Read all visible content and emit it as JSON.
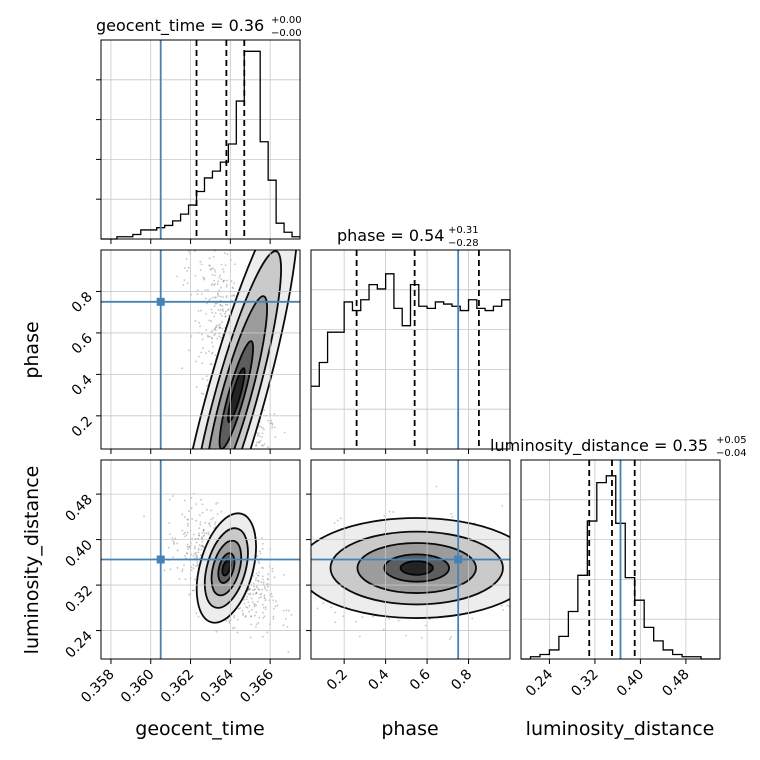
{
  "chart_data": {
    "type": "corner",
    "parameters": [
      {
        "name": "geocent_time",
        "title_base": "geocent_time = 0.36",
        "title_plus": "+0.00",
        "title_minus": "−0.00",
        "range": [
          0.3575,
          0.3675
        ],
        "ticks": [
          0.358,
          0.36,
          0.362,
          0.364,
          0.366
        ],
        "tick_labels": [
          "0.358",
          "0.360",
          "0.362",
          "0.364",
          "0.366"
        ],
        "truth": 0.3605,
        "quantiles": [
          0.3623,
          0.3638,
          0.3647
        ],
        "hist_values": [
          0,
          0,
          1,
          1,
          2,
          4,
          4,
          5,
          6,
          8,
          11,
          15,
          21,
          27,
          30,
          34,
          42,
          61,
          83,
          83,
          43,
          26,
          7,
          3,
          1
        ],
        "hist_ylim": [
          0,
          88
        ]
      },
      {
        "name": "phase",
        "title_base": "phase = 0.54",
        "title_plus": "+0.31",
        "title_minus": "−0.28",
        "range": [
          0.04,
          1.0
        ],
        "ticks": [
          0.2,
          0.4,
          0.6,
          0.8
        ],
        "tick_labels": [
          "0.2",
          "0.4",
          "0.6",
          "0.8"
        ],
        "truth": 0.75,
        "quantiles": [
          0.26,
          0.54,
          0.85
        ],
        "hist_values": [
          29,
          40,
          54,
          54,
          68,
          64,
          69,
          76,
          74,
          81,
          65,
          57,
          76,
          66,
          65,
          68,
          67,
          66,
          64,
          69,
          65,
          64,
          66,
          69
        ],
        "hist_ylim": [
          0,
          92
        ]
      },
      {
        "name": "luminosity_distance",
        "title_base": "luminosity_distance = 0.35",
        "title_plus": "+0.05",
        "title_minus": "−0.04",
        "range": [
          0.19,
          0.54
        ],
        "ticks": [
          0.24,
          0.32,
          0.4,
          0.48
        ],
        "tick_labels": [
          "0.24",
          "0.32",
          "0.40",
          "0.48"
        ],
        "truth": 0.365,
        "quantiles": [
          0.31,
          0.35,
          0.39
        ],
        "hist_values": [
          0,
          1,
          2,
          4,
          10,
          21,
          37,
          61,
          78,
          81,
          60,
          36,
          26,
          14,
          8,
          4,
          2,
          1,
          1,
          0,
          0
        ],
        "hist_ylim": [
          0,
          88
        ]
      }
    ],
    "pairs": [
      {
        "x": "geocent_time",
        "y": "phase",
        "center": [
          0.3643,
          0.3
        ],
        "spread": [
          0.0012,
          0.45
        ],
        "corr": -0.8
      },
      {
        "x": "geocent_time",
        "y": "luminosity_distance",
        "center": [
          0.3638,
          0.35
        ],
        "spread": [
          0.0011,
          0.045
        ],
        "corr": -0.5
      },
      {
        "x": "phase",
        "y": "luminosity_distance",
        "center": [
          0.55,
          0.35
        ],
        "spread": [
          0.26,
          0.04
        ],
        "corr": 0.0
      }
    ],
    "truth_color": "#4682b4"
  }
}
